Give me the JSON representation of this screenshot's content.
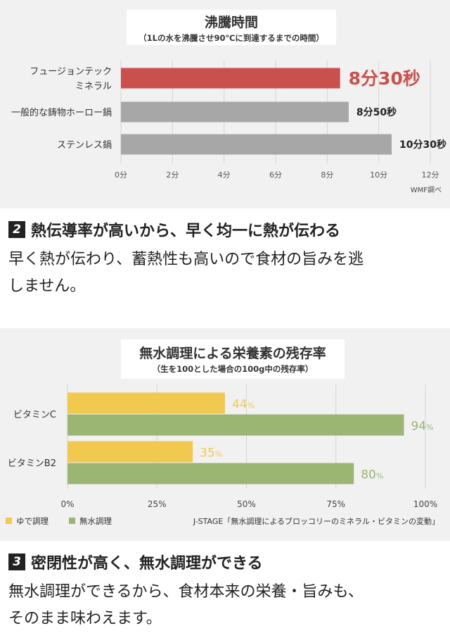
{
  "chart1": {
    "title": "沸騰時間",
    "subtitle": "（1Lの水を沸騰させ90℃に到達するまでの時間）",
    "source": "WMF調べ",
    "chart_data": {
      "type": "bar",
      "orientation": "horizontal",
      "categories": [
        [
          "フュージョンテック",
          "ミネラル"
        ],
        [
          "一般的な鋳物ホーロー鍋"
        ],
        [
          "ステンレス鍋"
        ]
      ],
      "values": [
        8.5,
        8.833,
        10.5
      ],
      "value_labels": [
        "8分30秒",
        "8分50秒",
        "10分30秒"
      ],
      "xticks": [
        "0分",
        "2分",
        "4分",
        "6分",
        "8分",
        "10分",
        "12分"
      ],
      "xlim": [
        0,
        12
      ],
      "colors": [
        "#c9504c",
        "#a7a7a7",
        "#a7a7a7"
      ],
      "highlight_label_color": "#c9504c",
      "grid": "vertical"
    }
  },
  "section2": {
    "number": "2",
    "heading": "熱伝導率が高いから、早く均一に熱が伝わる",
    "body_lines": [
      "早く熱が伝わり、蓄熱性も高いので食材の旨みを逃",
      "しません。"
    ]
  },
  "chart2": {
    "title": "無水調理による栄養素の残存率",
    "subtitle": "（生を100とした場合の100g中の残存率）",
    "source": "J-STAGE「無水調理によるブロッコリーのミネラル・ビタミンの変動」",
    "chart_data": {
      "type": "bar",
      "orientation": "horizontal",
      "categories": [
        "ビタミンC",
        "ビタミンB2"
      ],
      "series": [
        {
          "name": "ゆで調理",
          "values": [
            44,
            35
          ],
          "labels": [
            "44",
            "35"
          ],
          "color": "#f2c94f"
        },
        {
          "name": "無水調理",
          "values": [
            94,
            80
          ],
          "labels": [
            "94",
            "80"
          ],
          "color": "#9bb572"
        }
      ],
      "unit": "%",
      "xticks": [
        "0%",
        "25%",
        "50%",
        "75%",
        "100%"
      ],
      "xlim": [
        0,
        100
      ],
      "legend": "bottom-left",
      "grid": "vertical"
    }
  },
  "section3": {
    "number": "3",
    "heading": "密閉性が高く、無水調理ができる",
    "body_lines": [
      "無水調理ができるから、食材本来の栄養・旨みも、",
      "そのまま味わえます。"
    ]
  }
}
